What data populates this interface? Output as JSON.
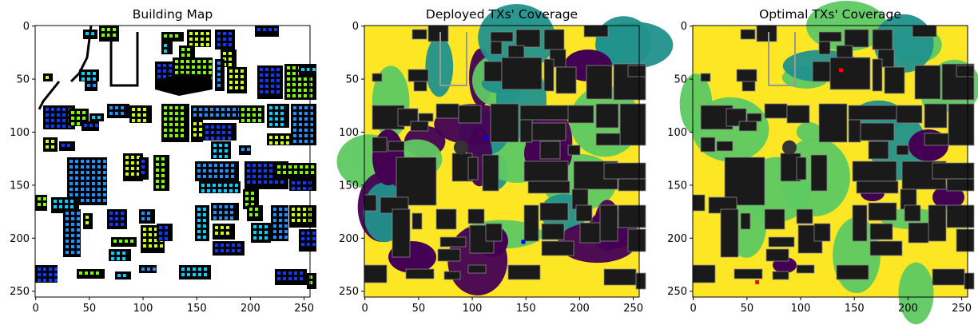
{
  "figure": {
    "panels": [
      {
        "title": "Building Map",
        "palette": {
          "background": "#ffffff",
          "building": "#000000",
          "markers": [
            "#7cfc00",
            "#ccff00",
            "#00d0ff",
            "#0a3cff",
            "#1e90ff"
          ]
        }
      },
      {
        "title": "Deployed TXs' Coverage",
        "palette": {
          "strong": "#fde725",
          "good": "#5ec962",
          "medium": "#21918c",
          "weak": "#440154",
          "building": "#1a1a1a",
          "tx": "#0000ff"
        }
      },
      {
        "title": "Optimal TXs' Coverage",
        "palette": {
          "strong": "#fde725",
          "good": "#5ec962",
          "medium": "#21918c",
          "weak": "#440154",
          "building": "#1a1a1a",
          "tx": "#ff0000"
        }
      }
    ]
  },
  "chart_data": [
    {
      "type": "heatmap",
      "title": "Building Map",
      "xlabel": "",
      "ylabel": "",
      "xlim": [
        0,
        256
      ],
      "ylim": [
        256,
        0
      ],
      "xticks": [
        0,
        50,
        100,
        150,
        200,
        250
      ],
      "yticks": [
        0,
        50,
        100,
        150,
        200,
        250
      ]
    },
    {
      "type": "heatmap",
      "title": "Deployed TXs' Coverage",
      "xlabel": "",
      "ylabel": "",
      "xlim": [
        0,
        256
      ],
      "ylim": [
        256,
        0
      ],
      "xticks": [
        0,
        50,
        100,
        150,
        200,
        250
      ],
      "yticks": [
        0,
        50,
        100,
        150,
        200,
        250
      ],
      "transmitters": [
        {
          "x": 113,
          "y": 106
        },
        {
          "x": 148,
          "y": 204
        }
      ]
    },
    {
      "type": "heatmap",
      "title": "Optimal TXs' Coverage",
      "xlabel": "",
      "ylabel": "",
      "xlim": [
        0,
        256
      ],
      "ylim": [
        256,
        0
      ],
      "xticks": [
        0,
        50,
        100,
        150,
        200,
        250
      ],
      "yticks": [
        0,
        50,
        100,
        150,
        200,
        250
      ],
      "transmitters": [
        {
          "x": 138,
          "y": 42
        },
        {
          "x": 60,
          "y": 242
        }
      ]
    }
  ]
}
